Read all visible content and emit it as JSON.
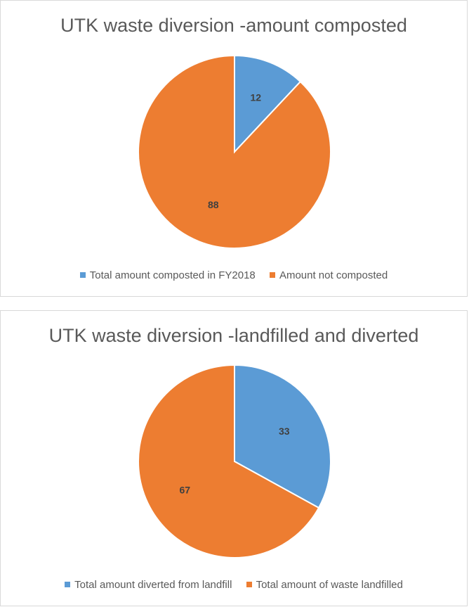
{
  "chart_data": [
    {
      "type": "pie",
      "title": "UTK waste diversion -amount composted",
      "slices": [
        {
          "label": "Total amount composted in FY2018",
          "value": 12,
          "color": "#5b9bd5"
        },
        {
          "label": "Amount not composted",
          "value": 88,
          "color": "#ed7d31"
        }
      ],
      "legend_position": "bottom",
      "start_angle_deg": 0,
      "direction": "clockwise"
    },
    {
      "type": "pie",
      "title": "UTK waste diversion -landfilled and diverted",
      "slices": [
        {
          "label": "Total amount diverted from landfill",
          "value": 33,
          "color": "#5b9bd5"
        },
        {
          "label": "Total amount of waste landfilled",
          "value": 67,
          "color": "#ed7d31"
        }
      ],
      "legend_position": "bottom",
      "start_angle_deg": 0,
      "direction": "clockwise"
    }
  ]
}
